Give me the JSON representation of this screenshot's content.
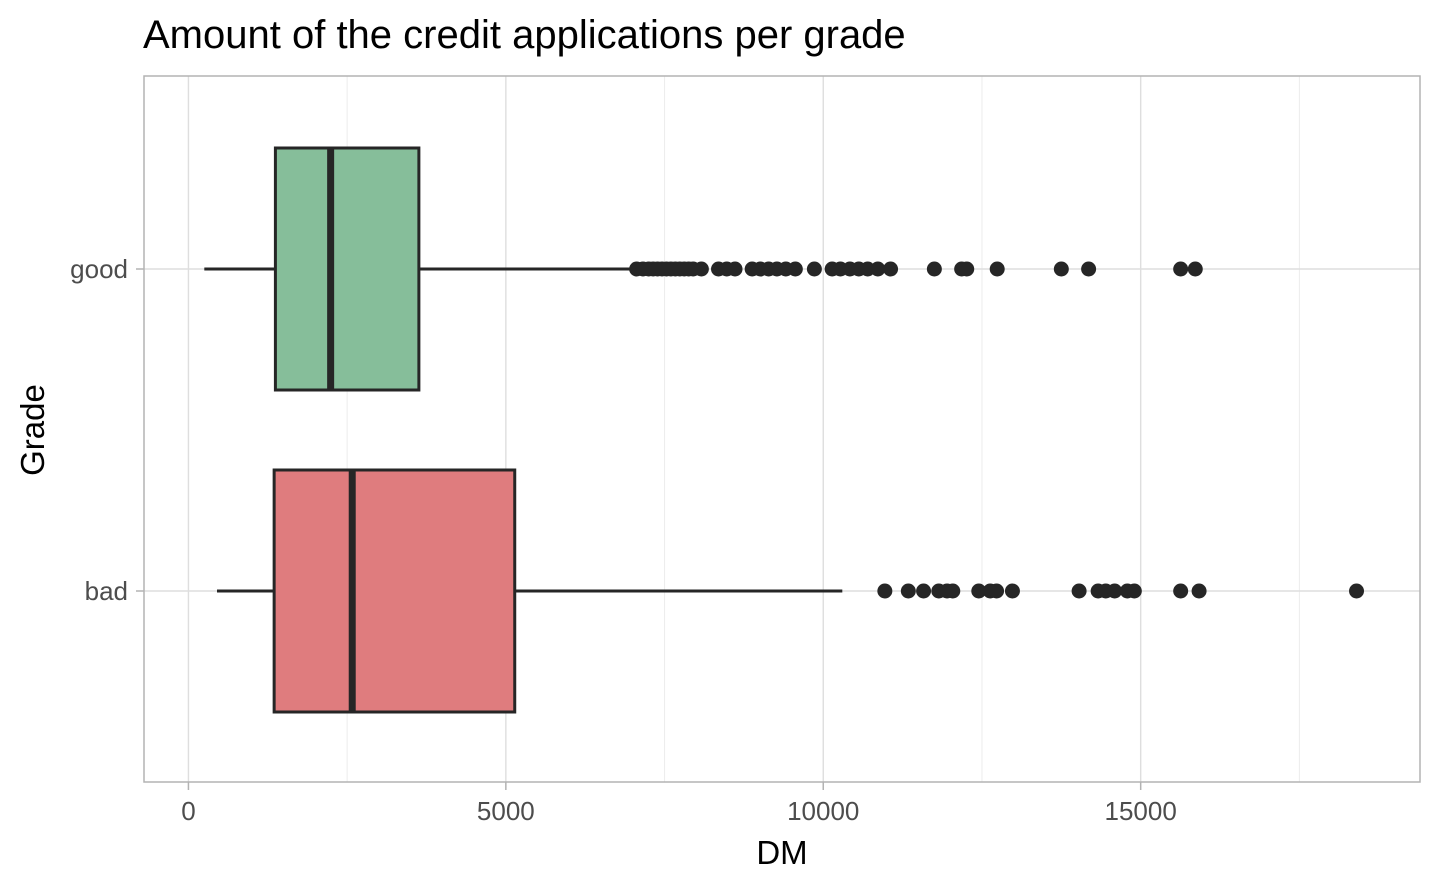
{
  "chart_data": {
    "type": "boxplot",
    "orientation": "horizontal",
    "title": "Amount of the credit applications per grade",
    "xlabel": "DM",
    "ylabel": "Grade",
    "xlim": [
      -700,
      19400
    ],
    "xticks": [
      0,
      5000,
      10000,
      15000
    ],
    "xtick_labels": [
      "0",
      "5000",
      "10000",
      "15000"
    ],
    "xminor": [
      2500,
      7500,
      12500,
      17500
    ],
    "grid": true,
    "legend": "none",
    "categories": [
      "bad",
      "good"
    ],
    "series": [
      {
        "category": "good",
        "color": "#86be9a",
        "whisker_low": 250,
        "q1": 1370,
        "median": 2240,
        "q3": 3630,
        "whisker_high": 7000,
        "outliers": [
          7060,
          7160,
          7250,
          7320,
          7390,
          7460,
          7530,
          7600,
          7670,
          7740,
          7810,
          7880,
          7950,
          8080,
          8350,
          8480,
          8610,
          8880,
          9010,
          9140,
          9270,
          9410,
          9560,
          9860,
          10140,
          10270,
          10420,
          10560,
          10700,
          10860,
          11060,
          11750,
          12180,
          12260,
          12740,
          13750,
          14180,
          15630,
          15860
        ]
      },
      {
        "category": "bad",
        "color": "#df7c7e",
        "whisker_low": 450,
        "q1": 1350,
        "median": 2580,
        "q3": 5140,
        "whisker_high": 10300,
        "outliers": [
          10970,
          11340,
          11580,
          11820,
          11950,
          12040,
          12450,
          12630,
          12730,
          12980,
          14030,
          14330,
          14450,
          14590,
          14790,
          14900,
          15630,
          15920,
          18400
        ]
      }
    ]
  }
}
